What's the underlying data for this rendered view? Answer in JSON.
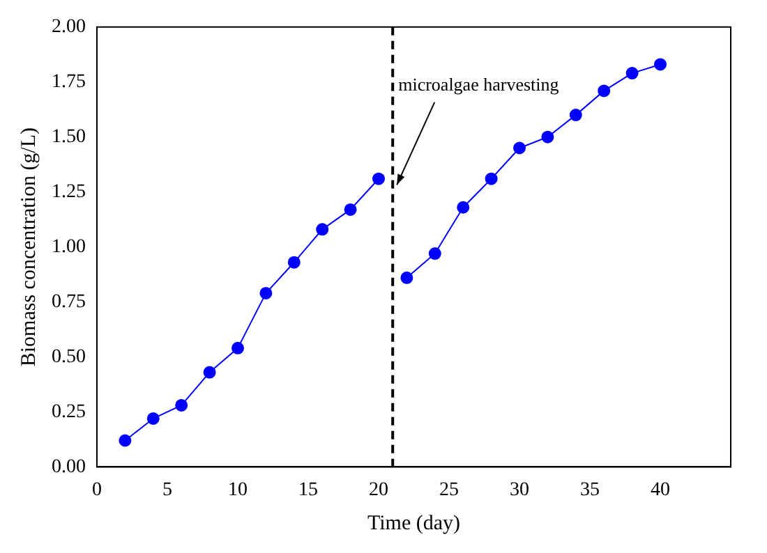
{
  "chart_data": {
    "type": "line",
    "xlabel": "Time (day)",
    "ylabel": "Biomass concentration (g/L)",
    "xlim": [
      0,
      45
    ],
    "xticks": [
      0,
      5,
      10,
      15,
      20,
      25,
      30,
      35,
      40
    ],
    "ylim": [
      0,
      2
    ],
    "yticks": [
      {
        "value": 0,
        "label": "0.00"
      },
      {
        "value": 0.25,
        "label": "0.25"
      },
      {
        "value": 0.5,
        "label": "0.50"
      },
      {
        "value": 0.75,
        "label": "0.75"
      },
      {
        "value": 1,
        "label": "1.00"
      },
      {
        "value": 1.25,
        "label": "1.25"
      },
      {
        "value": 1.5,
        "label": "1.50"
      },
      {
        "value": 1.75,
        "label": "1.75"
      },
      {
        "value": 2,
        "label": "2.00"
      }
    ],
    "series": [
      {
        "color": "#0000ff",
        "x": [
          2,
          4,
          6,
          8,
          10,
          12,
          14,
          16,
          18,
          20
        ],
        "values": [
          0.12,
          0.22,
          0.28,
          0.43,
          0.54,
          0.79,
          0.93,
          1.08,
          1.17,
          1.31
        ]
      },
      {
        "color": "#0000ff",
        "x": [
          22,
          24,
          26,
          28,
          30,
          32,
          34,
          36,
          38,
          40
        ],
        "values": [
          0.86,
          0.97,
          1.18,
          1.31,
          1.45,
          1.5,
          1.6,
          1.71,
          1.79,
          1.83
        ]
      }
    ],
    "ref_lines": [
      {
        "axis": "x",
        "value": 21,
        "color": "#000000",
        "line_style": "dashed"
      }
    ],
    "annotations": [
      {
        "text": "microalgae harvesting",
        "x": 21,
        "y": 1.27
      }
    ],
    "marker": "circle",
    "line_style": "solid",
    "grid": false,
    "legend": false
  }
}
